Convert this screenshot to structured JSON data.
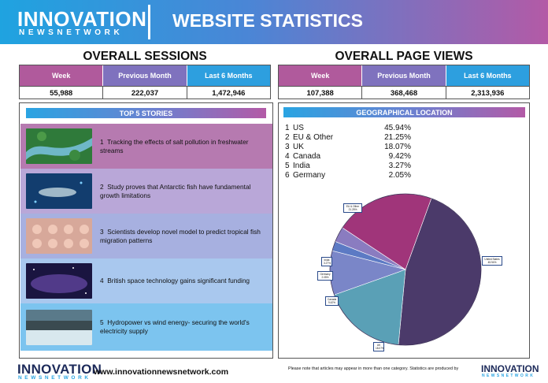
{
  "header": {
    "logo_main": "INNOVATION",
    "logo_sub": "NEWSNETWORK",
    "title": "WEBSITE STATISTICS"
  },
  "sessions": {
    "title": "OVERALL SESSIONS",
    "headers": [
      "Week",
      "Previous Month",
      "Last 6 Months"
    ],
    "values": [
      "55,988",
      "222,037",
      "1,472,946"
    ]
  },
  "page_views": {
    "title": "OVERALL PAGE VIEWS",
    "headers": [
      "Week",
      "Previous Month",
      "Last 6 Months"
    ],
    "values": [
      "107,388",
      "368,468",
      "2,313,936"
    ]
  },
  "stories": {
    "title": "TOP 5 STORIES",
    "items": [
      {
        "num": "1",
        "text": "Tracking the effects of salt pollution in freshwater streams",
        "bg": "#b67ab0"
      },
      {
        "num": "2",
        "text": "Study proves that Antarctic fish have fundamental growth limitations",
        "bg": "#b9a7d8"
      },
      {
        "num": "3",
        "text": "Scientists develop novel model to predict tropical fish migration patterns",
        "bg": "#a7b0e0"
      },
      {
        "num": "4",
        "text": "British space technology gains significant funding",
        "bg": "#a9c8ee"
      },
      {
        "num": "5",
        "text": "Hydropower vs wind energy- securing the world's electricity supply",
        "bg": "#7cc4ef"
      }
    ]
  },
  "geo": {
    "title": "GEOGRAPHICAL LOCATION",
    "items": [
      {
        "num": "1",
        "name": "US",
        "pct": "45.94%"
      },
      {
        "num": "2",
        "name": "EU & Other",
        "pct": "21.25%"
      },
      {
        "num": "3",
        "name": "UK",
        "pct": "18.07%"
      },
      {
        "num": "4",
        "name": "Canada",
        "pct": "9.42%"
      },
      {
        "num": "5",
        "name": "India",
        "pct": "3.27%"
      },
      {
        "num": "6",
        "name": "Germany",
        "pct": "2.05%"
      }
    ],
    "pie_labels": {
      "us": "United States 45.94%",
      "eu": "EU & Other 21.25%",
      "uk": "UK 18.07%",
      "canada": "Canada 9.42%",
      "india": "India 3.27%",
      "germany": "Germany 2.05%"
    }
  },
  "footer": {
    "logo_main": "INNOVATION",
    "logo_sub": "NEWSNETWORK",
    "url": "www.innovationnewsnetwork.com",
    "note": "Please note that articles may appear in more than one category. Statistics are produced by",
    "logo2_main": "INNOVATION",
    "logo2_sub": "NEWSNETWORK"
  },
  "chart_data": {
    "type": "pie",
    "title": "",
    "categories": [
      "United States",
      "EU & Other",
      "UK",
      "Canada",
      "India",
      "Germany"
    ],
    "values": [
      45.94,
      21.25,
      18.07,
      9.42,
      3.27,
      2.05
    ],
    "colors": [
      "#4b3a6a",
      "#a0357a",
      "#5aa0b6",
      "#7a86c8",
      "#8a7cc0",
      "#5c7ac4"
    ]
  }
}
